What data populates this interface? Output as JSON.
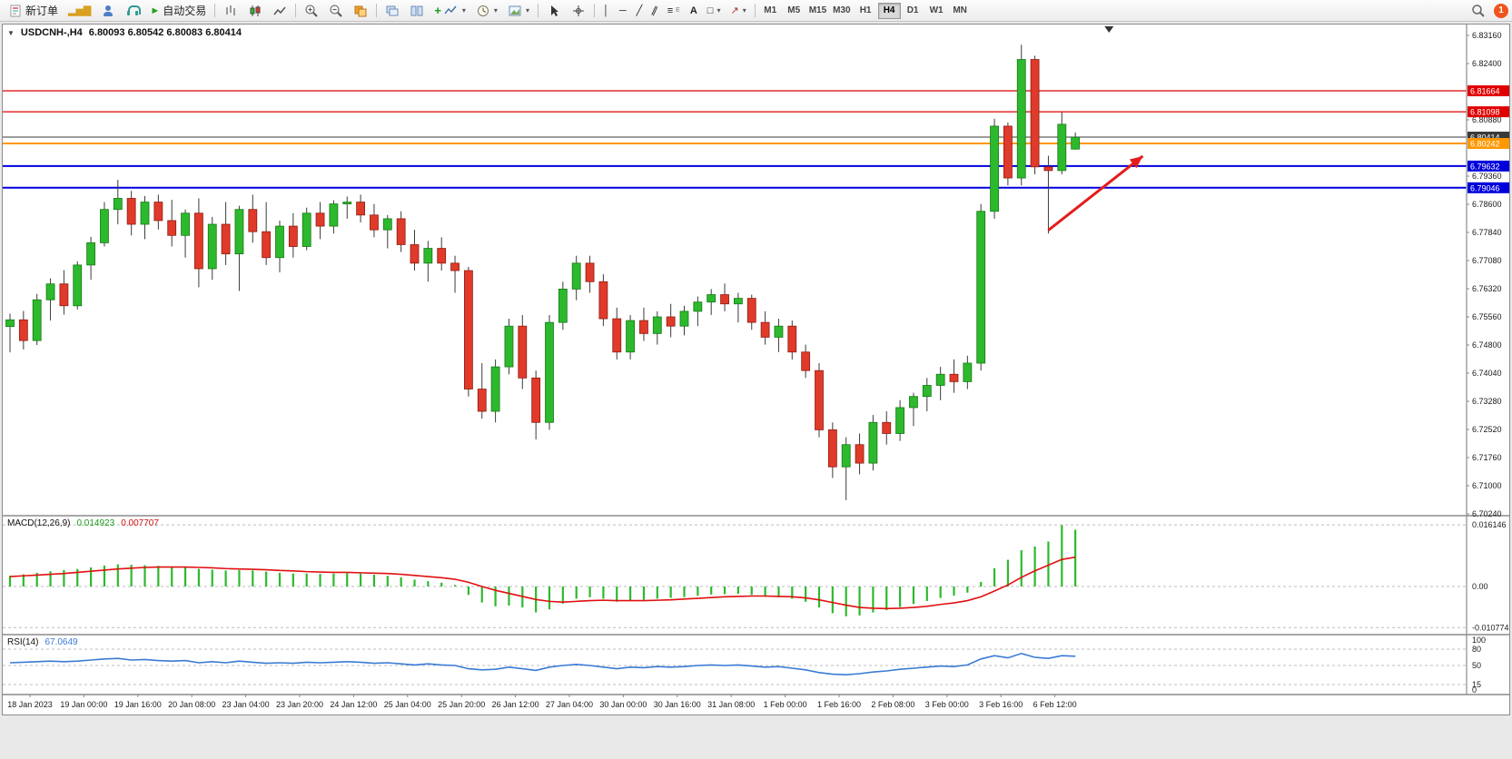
{
  "toolbar": {
    "new_order": "新订单",
    "auto_trading": "自动交易",
    "timeframes": [
      "M1",
      "M5",
      "M15",
      "M30",
      "H1",
      "H4",
      "D1",
      "W1",
      "MN"
    ],
    "active_timeframe": "H4"
  },
  "badge": {
    "count": "1"
  },
  "titles": {
    "symbol": "USDCNH-,H4",
    "ohlc": "6.80093 6.80542 6.80083 6.80414",
    "macd_name": "MACD(12,26,9)",
    "macd_main": "0.014923",
    "macd_signal": "0.007707",
    "rsi_name": "RSI(14)",
    "rsi_value": "67.0649"
  },
  "chart_data": [
    {
      "type": "candlestick",
      "title": "USDCNH-,H4",
      "ohlc_current": [
        6.80093,
        6.80542,
        6.80083,
        6.80414
      ],
      "up_color": "#2db92d",
      "down_color": "#e03a2a",
      "ylim": [
        6.7024,
        6.8316
      ],
      "y_axis_labels": [
        "6.83160",
        "6.82400",
        "6.80880",
        "6.79360",
        "6.78600",
        "6.77840",
        "6.77080",
        "6.76320",
        "6.75560",
        "6.74800",
        "6.74040",
        "6.73280",
        "6.72520",
        "6.71760",
        "6.71000",
        "6.70240"
      ],
      "hlines": [
        {
          "price": 6.81664,
          "label": "6.81664",
          "color": "#e00000",
          "width": 1.2
        },
        {
          "price": 6.81098,
          "label": "6.81098",
          "color": "#e00000",
          "width": 1.2
        },
        {
          "price": 6.80414,
          "label": "6.80414",
          "color": "#3a3a3a",
          "width": 1
        },
        {
          "price": 6.80242,
          "label": "6.80242",
          "color": "#ff9800",
          "width": 2
        },
        {
          "price": 6.79632,
          "label": "6.79632",
          "color": "#0000dd",
          "width": 2
        },
        {
          "price": 6.79046,
          "label": "6.79046",
          "color": "#0000dd",
          "width": 2
        }
      ],
      "time_labels": [
        "18 Jan 2023",
        "19 Jan 00:00",
        "19 Jan 16:00",
        "20 Jan 08:00",
        "23 Jan 04:00",
        "23 Jan 20:00",
        "24 Jan 12:00",
        "25 Jan 04:00",
        "25 Jan 20:00",
        "26 Jan 12:00",
        "27 Jan 04:00",
        "30 Jan 00:00",
        "30 Jan 16:00",
        "31 Jan 08:00",
        "1 Feb 00:00",
        "1 Feb 16:00",
        "2 Feb 08:00",
        "3 Feb 00:00",
        "3 Feb 16:00",
        "6 Feb 12:00"
      ],
      "candles": [
        [
          6.753,
          6.7565,
          6.746,
          6.7548
        ],
        [
          6.7548,
          6.7572,
          6.7468,
          6.7492
        ],
        [
          6.7492,
          6.7618,
          6.748,
          6.7602
        ],
        [
          6.7602,
          6.766,
          6.7546,
          6.7645
        ],
        [
          6.7645,
          6.7682,
          6.7562,
          6.7586
        ],
        [
          6.7586,
          6.7706,
          6.7576,
          6.7696
        ],
        [
          6.7696,
          6.7772,
          6.7656,
          6.7756
        ],
        [
          6.7756,
          6.7866,
          6.7746,
          6.7846
        ],
        [
          6.7846,
          6.7926,
          6.7806,
          6.7876
        ],
        [
          6.7876,
          6.7896,
          6.7776,
          6.7806
        ],
        [
          6.7806,
          6.7882,
          6.7766,
          6.7866
        ],
        [
          6.7866,
          6.7886,
          6.7792,
          6.7816
        ],
        [
          6.7816,
          6.7872,
          6.7746,
          6.7776
        ],
        [
          6.7776,
          6.7846,
          6.7716,
          6.7836
        ],
        [
          6.7836,
          6.7876,
          6.7636,
          6.7686
        ],
        [
          6.7686,
          6.7826,
          6.7656,
          6.7806
        ],
        [
          6.7806,
          6.7866,
          6.7696,
          6.7726
        ],
        [
          6.7726,
          6.7856,
          6.7626,
          6.7846
        ],
        [
          6.7846,
          6.7886,
          6.7756,
          6.7786
        ],
        [
          6.7786,
          6.7866,
          6.7696,
          6.7716
        ],
        [
          6.7716,
          6.7816,
          6.7676,
          6.7801
        ],
        [
          6.7801,
          6.7836,
          6.7716,
          6.7746
        ],
        [
          6.7746,
          6.7851,
          6.7736,
          6.7836
        ],
        [
          6.7836,
          6.7866,
          6.7766,
          6.7801
        ],
        [
          6.7801,
          6.7871,
          6.7781,
          6.7861
        ],
        [
          6.7861,
          6.7881,
          6.7821,
          6.7866
        ],
        [
          6.7866,
          6.7886,
          6.7811,
          6.7831
        ],
        [
          6.7831,
          6.7861,
          6.7771,
          6.7791
        ],
        [
          6.7791,
          6.7831,
          6.7741,
          6.7821
        ],
        [
          6.7821,
          6.7841,
          6.7731,
          6.7751
        ],
        [
          6.7751,
          6.7791,
          6.7681,
          6.7701
        ],
        [
          6.7701,
          6.7761,
          6.7651,
          6.7741
        ],
        [
          6.7741,
          6.7771,
          6.7681,
          6.7701
        ],
        [
          6.7701,
          6.7721,
          6.7621,
          6.7681
        ],
        [
          6.7681,
          6.7691,
          6.7341,
          6.7361
        ],
        [
          6.7361,
          6.7431,
          6.7281,
          6.7301
        ],
        [
          6.7301,
          6.7441,
          6.7271,
          6.7421
        ],
        [
          6.7421,
          6.7551,
          6.7401,
          6.7531
        ],
        [
          6.7531,
          6.7561,
          6.7361,
          6.7391
        ],
        [
          6.7391,
          6.7411,
          6.7225,
          6.7271
        ],
        [
          6.7271,
          6.7561,
          6.7251,
          6.7541
        ],
        [
          6.7541,
          6.7651,
          6.7521,
          6.7631
        ],
        [
          6.7631,
          6.7721,
          6.7601,
          6.7701
        ],
        [
          6.7701,
          6.7721,
          6.7621,
          6.7651
        ],
        [
          6.7651,
          6.7671,
          6.7531,
          6.7551
        ],
        [
          6.7551,
          6.7581,
          6.7441,
          6.7461
        ],
        [
          6.7461,
          6.7561,
          6.7441,
          6.7546
        ],
        [
          6.7546,
          6.7581,
          6.7491,
          6.7511
        ],
        [
          6.7511,
          6.7571,
          6.7481,
          6.7556
        ],
        [
          6.7556,
          6.7591,
          6.7501,
          6.7531
        ],
        [
          6.7531,
          6.7586,
          6.7506,
          6.7571
        ],
        [
          6.7571,
          6.7611,
          6.7531,
          6.7596
        ],
        [
          6.7596,
          6.7631,
          6.7561,
          6.7616
        ],
        [
          6.7616,
          6.7646,
          6.7571,
          6.7591
        ],
        [
          6.7591,
          6.7621,
          6.7541,
          6.7606
        ],
        [
          6.7606,
          6.7616,
          6.7521,
          6.7541
        ],
        [
          6.7541,
          6.7571,
          6.7481,
          6.7501
        ],
        [
          6.7501,
          6.7551,
          6.7461,
          6.7531
        ],
        [
          6.7531,
          6.7546,
          6.7441,
          6.7461
        ],
        [
          6.7461,
          6.7481,
          6.7391,
          6.7411
        ],
        [
          6.7411,
          6.7431,
          6.7231,
          6.7251
        ],
        [
          6.7251,
          6.7271,
          6.7121,
          6.7151
        ],
        [
          6.7151,
          6.7231,
          6.7061,
          6.7211
        ],
        [
          6.7211,
          6.7241,
          6.7131,
          6.7161
        ],
        [
          6.7161,
          6.7291,
          6.7141,
          6.7271
        ],
        [
          6.7271,
          6.7301,
          6.7211,
          6.7241
        ],
        [
          6.7241,
          6.7331,
          6.7221,
          6.7311
        ],
        [
          6.7311,
          6.7351,
          6.7261,
          6.7341
        ],
        [
          6.7341,
          6.7391,
          6.7301,
          6.7371
        ],
        [
          6.7371,
          6.7421,
          6.7331,
          6.7401
        ],
        [
          6.7401,
          6.7441,
          6.7351,
          6.7381
        ],
        [
          6.7381,
          6.7451,
          6.7361,
          6.7431
        ],
        [
          6.7431,
          6.7861,
          6.7411,
          6.7841
        ],
        [
          6.7841,
          6.8091,
          6.7821,
          6.8071
        ],
        [
          6.8071,
          6.8081,
          6.7911,
          6.7931
        ],
        [
          6.7931,
          6.8291,
          6.7911,
          6.8251
        ],
        [
          6.8251,
          6.8261,
          6.7941,
          6.7961
        ],
        [
          6.7961,
          6.7991,
          6.7781,
          6.7951
        ],
        [
          6.7951,
          6.8111,
          6.7941,
          6.8076
        ],
        [
          6.8009,
          6.8054,
          6.8008,
          6.8041
        ]
      ],
      "arrow": {
        "from_candle": 77,
        "from_price": 6.779,
        "to_candle": 84,
        "to_price": 6.799,
        "color": "#e51c1c"
      },
      "shift_marker_candle": 81.5
    },
    {
      "type": "bar",
      "name": "MACD(12,26,9)",
      "current_values": [
        0.014923,
        0.007707
      ],
      "histogram_color": "#2db92d",
      "signal_color": "#e01010",
      "axis": [
        [
          "0.016146",
          0.016146
        ],
        [
          "0.00",
          0
        ],
        [
          "-0.010774",
          -0.010774
        ]
      ],
      "histogram": [
        0.0028,
        0.0032,
        0.0036,
        0.004,
        0.0043,
        0.0046,
        0.005,
        0.0055,
        0.0058,
        0.0057,
        0.0056,
        0.0054,
        0.0051,
        0.005,
        0.0046,
        0.0044,
        0.0042,
        0.0043,
        0.0042,
        0.0039,
        0.0036,
        0.0034,
        0.0034,
        0.0033,
        0.0034,
        0.0035,
        0.0034,
        0.0031,
        0.0028,
        0.0024,
        0.0018,
        0.0014,
        0.001,
        0.0004,
        -0.0022,
        -0.0042,
        -0.0052,
        -0.005,
        -0.0055,
        -0.0068,
        -0.006,
        -0.0045,
        -0.0032,
        -0.0028,
        -0.0032,
        -0.004,
        -0.0038,
        -0.0035,
        -0.0032,
        -0.003,
        -0.0028,
        -0.0024,
        -0.0021,
        -0.002,
        -0.0019,
        -0.0022,
        -0.0027,
        -0.0028,
        -0.0032,
        -0.004,
        -0.0055,
        -0.007,
        -0.0078,
        -0.0076,
        -0.0068,
        -0.0062,
        -0.0054,
        -0.0046,
        -0.0038,
        -0.003,
        -0.0024,
        -0.0016,
        0.0012,
        0.0048,
        0.007,
        0.0095,
        0.0105,
        0.0118,
        0.0161,
        0.0149
      ],
      "signal": [
        0.0026,
        0.0028,
        0.003,
        0.0032,
        0.0034,
        0.0037,
        0.004,
        0.0043,
        0.0046,
        0.0048,
        0.005,
        0.0051,
        0.0051,
        0.0051,
        0.005,
        0.0049,
        0.0047,
        0.0046,
        0.0045,
        0.0044,
        0.0042,
        0.0041,
        0.0039,
        0.0038,
        0.0037,
        0.0037,
        0.0036,
        0.0035,
        0.0034,
        0.0032,
        0.0029,
        0.0026,
        0.0023,
        0.0019,
        0.0011,
        0.0,
        -0.001,
        -0.0018,
        -0.0026,
        -0.0034,
        -0.0039,
        -0.0041,
        -0.0039,
        -0.0037,
        -0.0036,
        -0.0037,
        -0.0037,
        -0.0037,
        -0.0036,
        -0.0035,
        -0.0033,
        -0.0031,
        -0.0029,
        -0.0027,
        -0.0026,
        -0.0025,
        -0.0025,
        -0.0026,
        -0.0027,
        -0.003,
        -0.0035,
        -0.0042,
        -0.0049,
        -0.0055,
        -0.0057,
        -0.0058,
        -0.0057,
        -0.0055,
        -0.0052,
        -0.0047,
        -0.0043,
        -0.0037,
        -0.0027,
        -0.0012,
        0.0004,
        0.0024,
        0.0041,
        0.0056,
        0.0071,
        0.0077
      ]
    },
    {
      "type": "line",
      "name": "RSI(14)",
      "current_value": 67.0649,
      "line_color": "#3a7bd5",
      "axis": [
        [
          "100",
          100
        ],
        [
          "80",
          80
        ],
        [
          "50",
          50
        ],
        [
          "15",
          15
        ],
        [
          "0",
          0
        ]
      ],
      "levels": [
        80,
        50,
        15
      ],
      "values": [
        55,
        56,
        57,
        58,
        57,
        58,
        60,
        62,
        63,
        60,
        61,
        59,
        58,
        59,
        55,
        57,
        55,
        58,
        56,
        54,
        55,
        54,
        56,
        55,
        56,
        57,
        56,
        54,
        55,
        53,
        51,
        53,
        51,
        50,
        44,
        42,
        43,
        47,
        44,
        41,
        47,
        50,
        52,
        50,
        47,
        44,
        47,
        46,
        48,
        47,
        48,
        50,
        51,
        50,
        51,
        49,
        47,
        48,
        45,
        42,
        37,
        34,
        33,
        35,
        38,
        40,
        43,
        45,
        47,
        49,
        48,
        51,
        62,
        68,
        64,
        72,
        65,
        63,
        68,
        67
      ]
    }
  ]
}
